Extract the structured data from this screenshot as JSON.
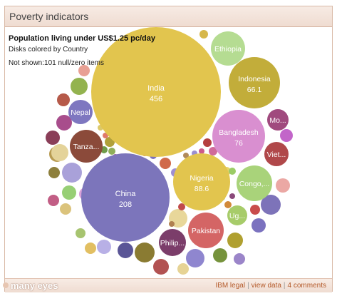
{
  "header": {
    "title": "Poverty indicators"
  },
  "info": {
    "subtitle": "Population living under US$1.25 pc/day",
    "color_note": "Disks colored by Country",
    "not_shown": "Not shown:101 null/zero items"
  },
  "footer": {
    "logo": "many eyes",
    "links": [
      "IBM legal",
      "view data",
      "4 comments"
    ]
  },
  "chart_data": {
    "type": "bubble",
    "title": "Population living under US$1.25 pc/day",
    "bubbles": [
      {
        "name": "India",
        "value": 456,
        "color": "#e2c54e",
        "labeled": true,
        "show_value": true
      },
      {
        "name": "China",
        "value": 208,
        "color": "#7c75bb",
        "labeled": true,
        "show_value": true
      },
      {
        "name": "Nigeria",
        "value": 88.6,
        "color": "#e2c54e",
        "labeled": true,
        "show_value": true
      },
      {
        "name": "Bangladesh",
        "value": 76,
        "color": "#d98fd0",
        "labeled": true,
        "show_value": true
      },
      {
        "name": "Indonesia",
        "value": 66.1,
        "color": "#c2ad3a",
        "labeled": true,
        "show_value": true
      },
      {
        "name": "Ethiopia",
        "value": null,
        "color": "#b5dc92",
        "labeled": true,
        "show_value": false
      },
      {
        "name": "Pakistan",
        "value": null,
        "color": "#d46565",
        "labeled": true,
        "show_value": false
      },
      {
        "name": "Congo,...",
        "value": null,
        "color": "#a9d37a",
        "labeled": true,
        "show_value": false
      },
      {
        "name": "Tanza...",
        "value": null,
        "color": "#8b4a3a",
        "labeled": true,
        "show_value": false
      },
      {
        "name": "Philip...",
        "value": null,
        "color": "#7b3d6a",
        "labeled": true,
        "show_value": false
      },
      {
        "name": "Nepal",
        "value": null,
        "color": "#7e77c0",
        "labeled": true,
        "show_value": false
      },
      {
        "name": "Viet...",
        "value": null,
        "color": "#b0484a",
        "labeled": true,
        "show_value": false
      },
      {
        "name": "Ug...",
        "value": null,
        "color": "#a7cc6a",
        "labeled": true,
        "show_value": false
      },
      {
        "name": "Mo...",
        "value": null,
        "color": "#a04a7e",
        "labeled": true,
        "show_value": false
      }
    ]
  }
}
